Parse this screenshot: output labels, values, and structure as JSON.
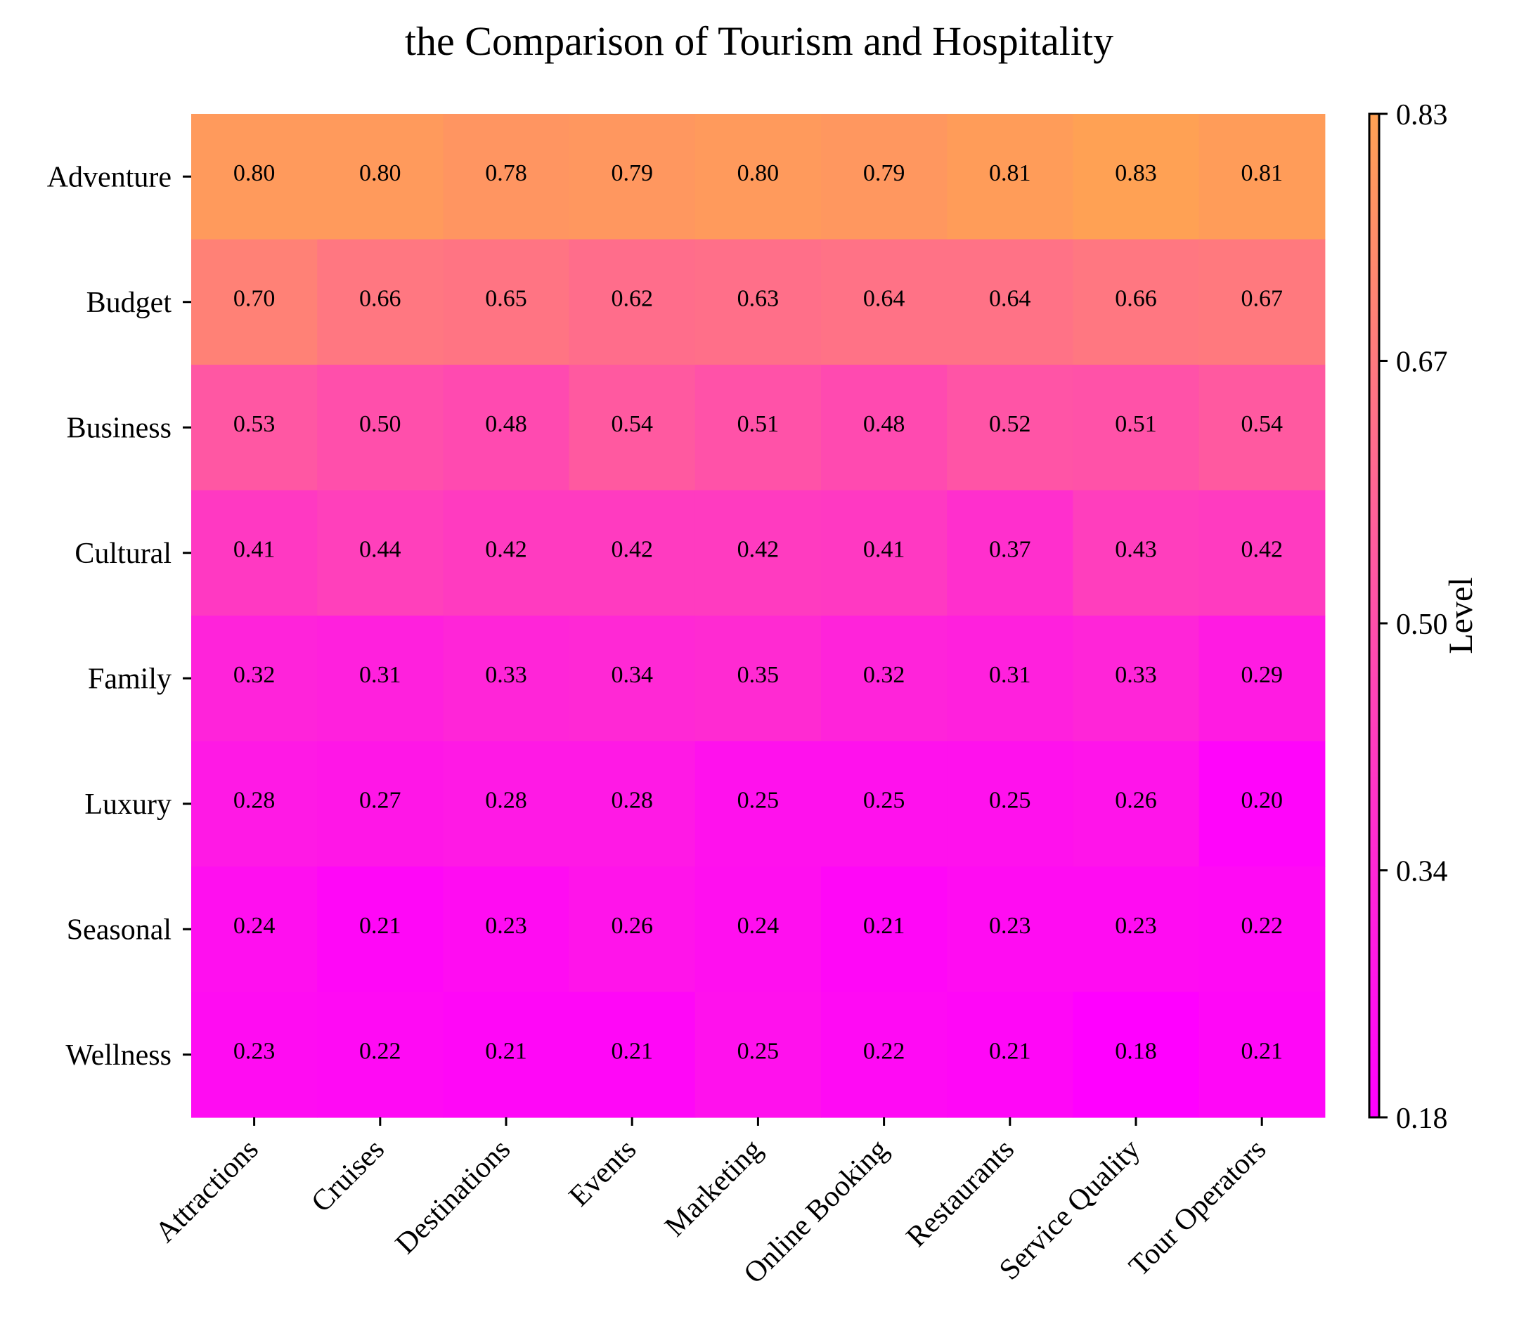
{
  "chart_data": {
    "type": "heatmap",
    "title": "the Comparison of Tourism and Hospitality",
    "xlabel": "",
    "ylabel": "",
    "x_categories": [
      "Attractions",
      "Cruises",
      "Destinations",
      "Events",
      "Marketing",
      "Online Booking",
      "Restaurants",
      "Service Quality",
      "Tour Operators"
    ],
    "y_categories": [
      "Adventure",
      "Budget",
      "Business",
      "Cultural",
      "Family",
      "Luxury",
      "Seasonal",
      "Wellness"
    ],
    "values": [
      [
        0.8,
        0.8,
        0.78,
        0.79,
        0.8,
        0.79,
        0.81,
        0.83,
        0.81
      ],
      [
        0.7,
        0.66,
        0.65,
        0.62,
        0.63,
        0.64,
        0.64,
        0.66,
        0.67
      ],
      [
        0.53,
        0.5,
        0.48,
        0.54,
        0.51,
        0.48,
        0.52,
        0.51,
        0.54
      ],
      [
        0.41,
        0.44,
        0.42,
        0.42,
        0.42,
        0.41,
        0.37,
        0.43,
        0.42
      ],
      [
        0.32,
        0.31,
        0.33,
        0.34,
        0.35,
        0.32,
        0.31,
        0.33,
        0.29
      ],
      [
        0.28,
        0.27,
        0.28,
        0.28,
        0.25,
        0.25,
        0.25,
        0.26,
        0.2
      ],
      [
        0.24,
        0.21,
        0.23,
        0.26,
        0.24,
        0.21,
        0.23,
        0.23,
        0.22
      ],
      [
        0.23,
        0.22,
        0.21,
        0.21,
        0.25,
        0.22,
        0.21,
        0.18,
        0.21
      ]
    ],
    "colorbar": {
      "label": "Level",
      "range": [
        0.18,
        0.83
      ],
      "ticks": [
        "0.18",
        "0.34",
        "0.50",
        "0.67",
        "0.83"
      ],
      "colormap": "spring",
      "color_low": "#ff00ff",
      "color_high": "#ffa154"
    },
    "value_format": "2 decimals"
  }
}
